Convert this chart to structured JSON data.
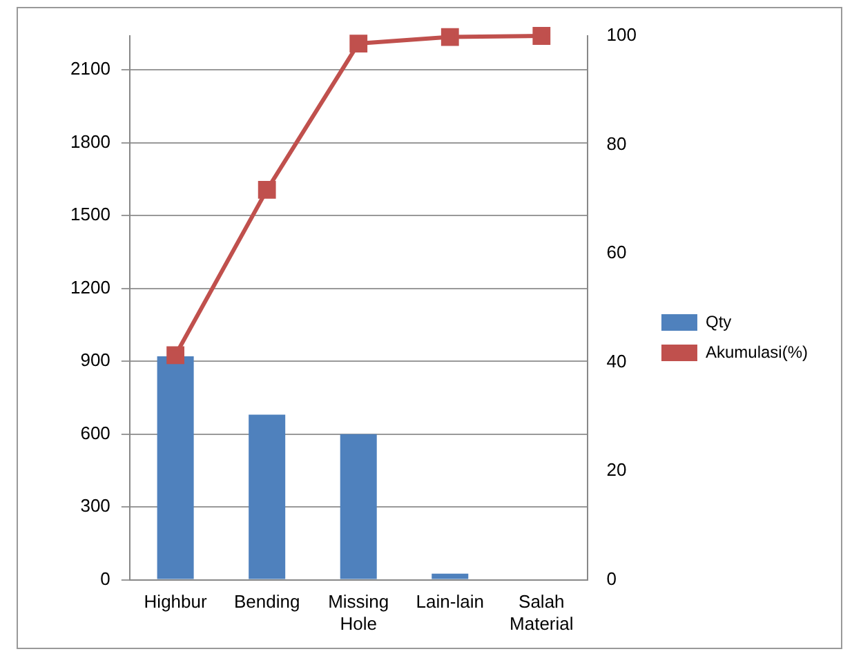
{
  "chart_data": {
    "type": "bar",
    "categories": [
      "Highbur",
      "Bending",
      "Missing Hole",
      "Lain-lain",
      "Salah Material"
    ],
    "series": [
      {
        "name": "Qty",
        "color": "#4f81bd",
        "values": [
          920,
          680,
          600,
          25,
          0
        ]
      },
      {
        "name": "Akumulasi(%)",
        "type": "line",
        "axis": "y2",
        "color": "#c0504d",
        "marker": "square",
        "values": [
          41.3,
          71.7,
          98.6,
          99.8,
          100
        ]
      }
    ],
    "ylim": [
      0,
      2240
    ],
    "yticks": [
      0,
      300,
      600,
      900,
      1200,
      1500,
      1800,
      2100
    ],
    "y2lim": [
      0,
      100
    ],
    "y2ticks": [
      0,
      20,
      40,
      60,
      80,
      100
    ],
    "grid": "y",
    "legend": "right"
  }
}
